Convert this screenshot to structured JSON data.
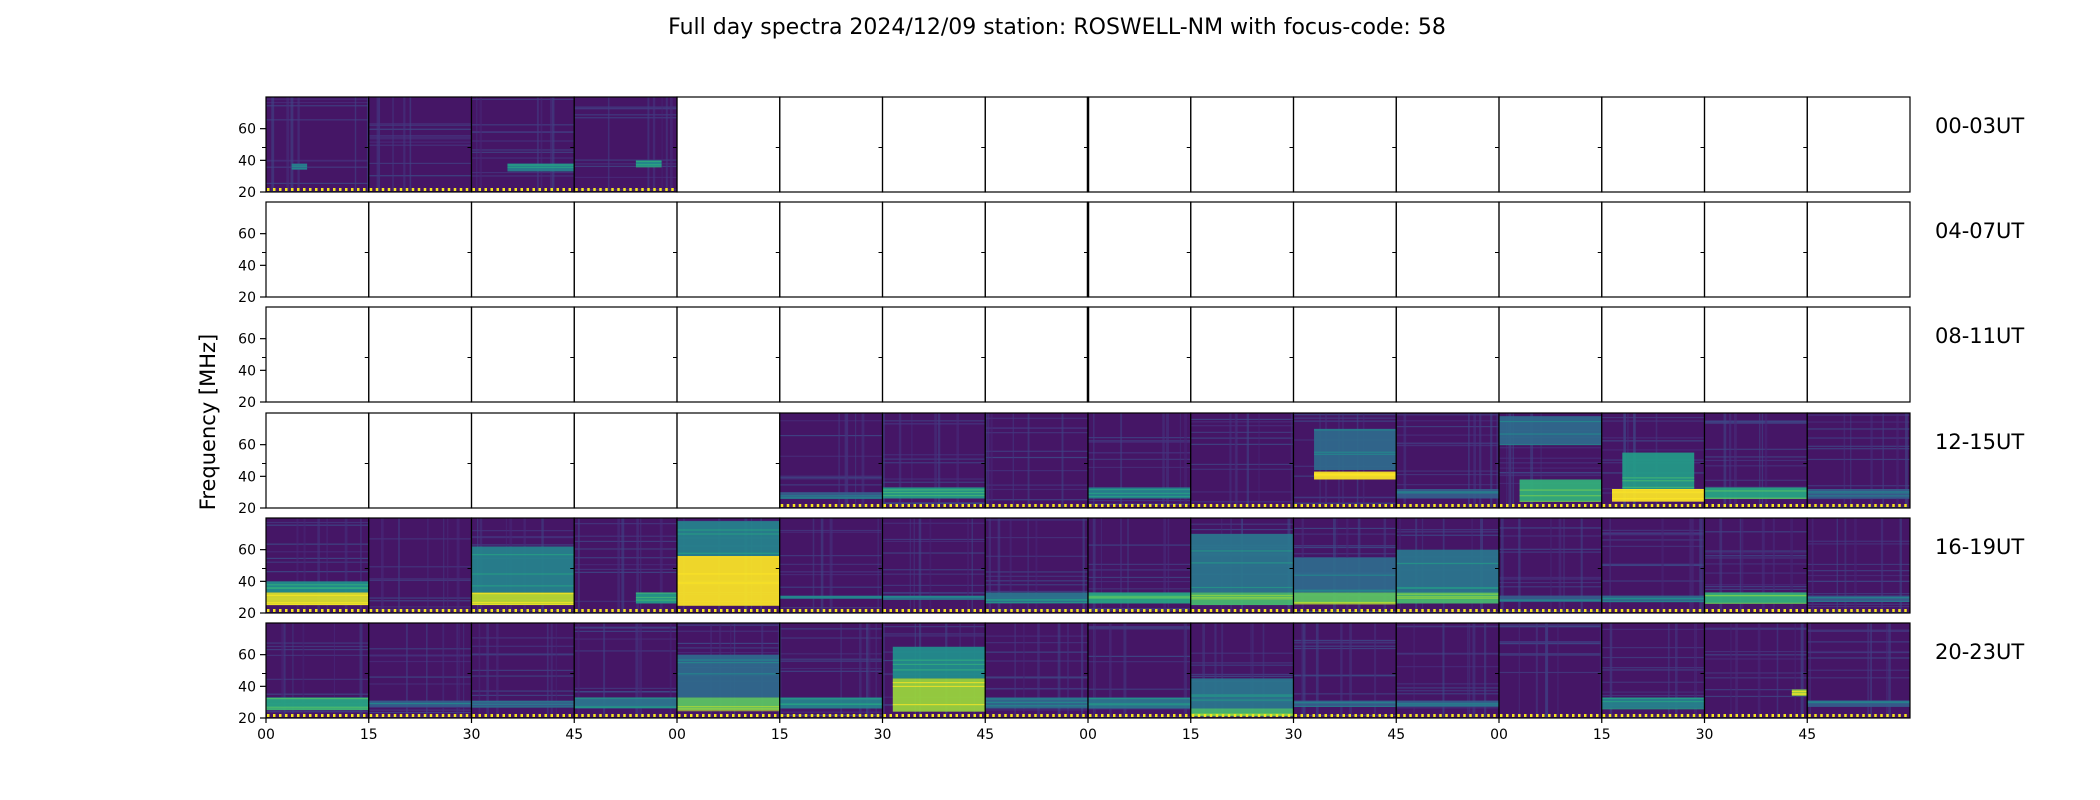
{
  "title": "Full day spectra 2024/12/09 station: ROSWELL-NM with focus-code: 58",
  "colors": {
    "background": "#ffffff",
    "frame": "#000000",
    "marker_dots": "#f4e61e",
    "colormap": [
      "#440154",
      "#472c7a",
      "#3b518b",
      "#2c718e",
      "#21908d",
      "#27ad81",
      "#5cc863",
      "#aadc32",
      "#fde725"
    ]
  },
  "chart_data": {
    "type": "heatmap",
    "title": "Full day spectra 2024/12/09 station: ROSWELL-NM with focus-code: 58",
    "ylabel": "Frequency [MHz]",
    "xlabel": "",
    "ylim": [
      20,
      80
    ],
    "y_ticks": [
      20,
      40,
      60
    ],
    "x_tick_labels": [
      "00",
      "15",
      "30",
      "45",
      "00",
      "15",
      "30",
      "45",
      "00",
      "15",
      "30",
      "45",
      "00",
      "15",
      "30",
      "45"
    ],
    "grid": false,
    "colormap": "viridis",
    "minutes_per_panel": 15,
    "rows": [
      {
        "label": "00-03UT",
        "panels": [
          {
            "has_data": true,
            "bands": [
              {
                "lo": 34,
                "hi": 38,
                "start": 0.25,
                "end": 0.4,
                "level": 0.35
              }
            ]
          },
          {
            "has_data": true,
            "bands": []
          },
          {
            "has_data": true,
            "bands": [
              {
                "lo": 33,
                "hi": 38,
                "start": 0.35,
                "end": 1.0,
                "level": 0.45
              }
            ]
          },
          {
            "has_data": true,
            "bands": [
              {
                "lo": 36,
                "hi": 40,
                "start": 0.6,
                "end": 0.85,
                "level": 0.5
              }
            ]
          },
          {
            "has_data": false
          },
          {
            "has_data": false
          },
          {
            "has_data": false
          },
          {
            "has_data": false
          },
          {
            "has_data": false
          },
          {
            "has_data": false
          },
          {
            "has_data": false
          },
          {
            "has_data": false
          },
          {
            "has_data": false
          },
          {
            "has_data": false
          },
          {
            "has_data": false
          },
          {
            "has_data": false
          }
        ]
      },
      {
        "label": "04-07UT",
        "panels": [
          {
            "has_data": false
          },
          {
            "has_data": false
          },
          {
            "has_data": false
          },
          {
            "has_data": false
          },
          {
            "has_data": false
          },
          {
            "has_data": false
          },
          {
            "has_data": false
          },
          {
            "has_data": false
          },
          {
            "has_data": false
          },
          {
            "has_data": false
          },
          {
            "has_data": false
          },
          {
            "has_data": false
          },
          {
            "has_data": false
          },
          {
            "has_data": false
          },
          {
            "has_data": false
          },
          {
            "has_data": false
          }
        ]
      },
      {
        "label": "08-11UT",
        "panels": [
          {
            "has_data": false
          },
          {
            "has_data": false
          },
          {
            "has_data": false
          },
          {
            "has_data": false
          },
          {
            "has_data": false
          },
          {
            "has_data": false
          },
          {
            "has_data": false
          },
          {
            "has_data": false
          },
          {
            "has_data": false
          },
          {
            "has_data": false
          },
          {
            "has_data": false
          },
          {
            "has_data": false
          },
          {
            "has_data": false
          },
          {
            "has_data": false
          },
          {
            "has_data": false
          },
          {
            "has_data": false
          }
        ]
      },
      {
        "label": "12-15UT",
        "panels": [
          {
            "has_data": false
          },
          {
            "has_data": false
          },
          {
            "has_data": false
          },
          {
            "has_data": false
          },
          {
            "has_data": false
          },
          {
            "has_data": true,
            "bands": [
              {
                "lo": 26,
                "hi": 30,
                "start": 0.0,
                "end": 1.0,
                "level": 0.3
              }
            ]
          },
          {
            "has_data": true,
            "bands": [
              {
                "lo": 26,
                "hi": 33,
                "start": 0.0,
                "end": 1.0,
                "level": 0.55
              }
            ]
          },
          {
            "has_data": true,
            "bands": []
          },
          {
            "has_data": true,
            "bands": [
              {
                "lo": 26,
                "hi": 33,
                "start": 0.0,
                "end": 1.0,
                "level": 0.45
              }
            ]
          },
          {
            "has_data": true,
            "bands": []
          },
          {
            "has_data": true,
            "bands": [
              {
                "lo": 38,
                "hi": 43,
                "start": 0.2,
                "end": 1.0,
                "level": 1.0
              },
              {
                "lo": 44,
                "hi": 70,
                "start": 0.2,
                "end": 1.0,
                "level": 0.35
              }
            ]
          },
          {
            "has_data": true,
            "bands": [
              {
                "lo": 26,
                "hi": 32,
                "start": 0.0,
                "end": 1.0,
                "level": 0.3
              }
            ]
          },
          {
            "has_data": true,
            "bands": [
              {
                "lo": 24,
                "hi": 38,
                "start": 0.2,
                "end": 1.0,
                "level": 0.65
              },
              {
                "lo": 60,
                "hi": 78,
                "start": 0.0,
                "end": 1.0,
                "level": 0.35
              }
            ]
          },
          {
            "has_data": true,
            "bands": [
              {
                "lo": 24,
                "hi": 32,
                "start": 0.1,
                "end": 1.0,
                "level": 1.0
              },
              {
                "lo": 32,
                "hi": 55,
                "start": 0.2,
                "end": 0.9,
                "level": 0.55
              }
            ]
          },
          {
            "has_data": true,
            "bands": [
              {
                "lo": 26,
                "hi": 33,
                "start": 0.0,
                "end": 1.0,
                "level": 0.6
              }
            ]
          },
          {
            "has_data": true,
            "bands": [
              {
                "lo": 26,
                "hi": 32,
                "start": 0.0,
                "end": 1.0,
                "level": 0.3
              }
            ]
          }
        ]
      },
      {
        "label": "16-19UT",
        "panels": [
          {
            "has_data": true,
            "bands": [
              {
                "lo": 25,
                "hi": 33,
                "start": 0.0,
                "end": 1.0,
                "level": 0.95
              },
              {
                "lo": 33,
                "hi": 40,
                "start": 0.0,
                "end": 1.0,
                "level": 0.5
              }
            ]
          },
          {
            "has_data": true,
            "bands": []
          },
          {
            "has_data": true,
            "bands": [
              {
                "lo": 25,
                "hi": 33,
                "start": 0.0,
                "end": 1.0,
                "level": 0.9
              },
              {
                "lo": 33,
                "hi": 62,
                "start": 0.0,
                "end": 1.0,
                "level": 0.45
              }
            ]
          },
          {
            "has_data": true,
            "bands": [
              {
                "lo": 26,
                "hi": 33,
                "start": 0.6,
                "end": 1.0,
                "level": 0.55
              }
            ]
          },
          {
            "has_data": true,
            "bands": [
              {
                "lo": 25,
                "hi": 56,
                "start": 0.0,
                "end": 1.0,
                "level": 1.0
              },
              {
                "lo": 56,
                "hi": 78,
                "start": 0.0,
                "end": 1.0,
                "level": 0.45
              }
            ]
          },
          {
            "has_data": true,
            "bands": [
              {
                "lo": 29,
                "hi": 31,
                "start": 0.0,
                "end": 1.0,
                "level": 0.35
              }
            ]
          },
          {
            "has_data": true,
            "bands": [
              {
                "lo": 29,
                "hi": 31,
                "start": 0.0,
                "end": 1.0,
                "level": 0.35
              }
            ]
          },
          {
            "has_data": true,
            "bands": [
              {
                "lo": 26,
                "hi": 33,
                "start": 0.0,
                "end": 1.0,
                "level": 0.4
              }
            ]
          },
          {
            "has_data": true,
            "bands": [
              {
                "lo": 26,
                "hi": 33,
                "start": 0.0,
                "end": 1.0,
                "level": 0.6
              }
            ]
          },
          {
            "has_data": true,
            "bands": [
              {
                "lo": 25,
                "hi": 33,
                "start": 0.0,
                "end": 1.0,
                "level": 0.7
              },
              {
                "lo": 33,
                "hi": 70,
                "start": 0.0,
                "end": 1.0,
                "level": 0.4
              }
            ]
          },
          {
            "has_data": true,
            "bands": [
              {
                "lo": 26,
                "hi": 33,
                "start": 0.0,
                "end": 1.0,
                "level": 0.75
              },
              {
                "lo": 33,
                "hi": 55,
                "start": 0.0,
                "end": 1.0,
                "level": 0.35
              }
            ]
          },
          {
            "has_data": true,
            "bands": [
              {
                "lo": 26,
                "hi": 33,
                "start": 0.0,
                "end": 1.0,
                "level": 0.7
              },
              {
                "lo": 33,
                "hi": 60,
                "start": 0.0,
                "end": 1.0,
                "level": 0.4
              }
            ]
          },
          {
            "has_data": true,
            "bands": [
              {
                "lo": 27,
                "hi": 31,
                "start": 0.0,
                "end": 1.0,
                "level": 0.3
              }
            ]
          },
          {
            "has_data": true,
            "bands": [
              {
                "lo": 27,
                "hi": 31,
                "start": 0.0,
                "end": 1.0,
                "level": 0.35
              }
            ]
          },
          {
            "has_data": true,
            "bands": [
              {
                "lo": 26,
                "hi": 33,
                "start": 0.0,
                "end": 1.0,
                "level": 0.65
              }
            ]
          },
          {
            "has_data": true,
            "bands": [
              {
                "lo": 27,
                "hi": 31,
                "start": 0.0,
                "end": 1.0,
                "level": 0.3
              }
            ]
          }
        ]
      },
      {
        "label": "20-23UT",
        "panels": [
          {
            "has_data": true,
            "bands": [
              {
                "lo": 25,
                "hi": 33,
                "start": 0.0,
                "end": 1.0,
                "level": 0.6
              }
            ]
          },
          {
            "has_data": true,
            "bands": [
              {
                "lo": 27,
                "hi": 31,
                "start": 0.0,
                "end": 1.0,
                "level": 0.3
              }
            ]
          },
          {
            "has_data": true,
            "bands": [
              {
                "lo": 27,
                "hi": 31,
                "start": 0.0,
                "end": 1.0,
                "level": 0.3
              }
            ]
          },
          {
            "has_data": true,
            "bands": [
              {
                "lo": 26,
                "hi": 33,
                "start": 0.0,
                "end": 1.0,
                "level": 0.4
              }
            ]
          },
          {
            "has_data": true,
            "bands": [
              {
                "lo": 25,
                "hi": 33,
                "start": 0.0,
                "end": 1.0,
                "level": 0.75
              },
              {
                "lo": 33,
                "hi": 60,
                "start": 0.0,
                "end": 1.0,
                "level": 0.35
              }
            ]
          },
          {
            "has_data": true,
            "bands": [
              {
                "lo": 26,
                "hi": 33,
                "start": 0.0,
                "end": 1.0,
                "level": 0.45
              }
            ]
          },
          {
            "has_data": true,
            "bands": [
              {
                "lo": 24,
                "hi": 45,
                "start": 0.1,
                "end": 1.0,
                "level": 0.85
              },
              {
                "lo": 45,
                "hi": 65,
                "start": 0.1,
                "end": 1.0,
                "level": 0.5
              }
            ]
          },
          {
            "has_data": true,
            "bands": [
              {
                "lo": 26,
                "hi": 33,
                "start": 0.0,
                "end": 1.0,
                "level": 0.35
              }
            ]
          },
          {
            "has_data": true,
            "bands": [
              {
                "lo": 26,
                "hi": 33,
                "start": 0.0,
                "end": 1.0,
                "level": 0.4
              }
            ]
          },
          {
            "has_data": true,
            "bands": [
              {
                "lo": 21,
                "hi": 26,
                "start": 0.0,
                "end": 1.0,
                "level": 0.7
              },
              {
                "lo": 26,
                "hi": 45,
                "start": 0.0,
                "end": 1.0,
                "level": 0.4
              }
            ]
          },
          {
            "has_data": true,
            "bands": [
              {
                "lo": 27,
                "hi": 31,
                "start": 0.0,
                "end": 1.0,
                "level": 0.3
              }
            ]
          },
          {
            "has_data": true,
            "bands": [
              {
                "lo": 27,
                "hi": 31,
                "start": 0.0,
                "end": 1.0,
                "level": 0.3
              }
            ]
          },
          {
            "has_data": true,
            "bands": []
          },
          {
            "has_data": true,
            "bands": [
              {
                "lo": 26,
                "hi": 33,
                "start": 0.0,
                "end": 1.0,
                "level": 0.45
              }
            ]
          },
          {
            "has_data": true,
            "bands": [
              {
                "lo": 34,
                "hi": 38,
                "start": 0.85,
                "end": 1.0,
                "level": 0.85
              }
            ]
          },
          {
            "has_data": true,
            "bands": [
              {
                "lo": 27,
                "hi": 31,
                "start": 0.0,
                "end": 1.0,
                "level": 0.3
              }
            ]
          }
        ]
      }
    ]
  }
}
